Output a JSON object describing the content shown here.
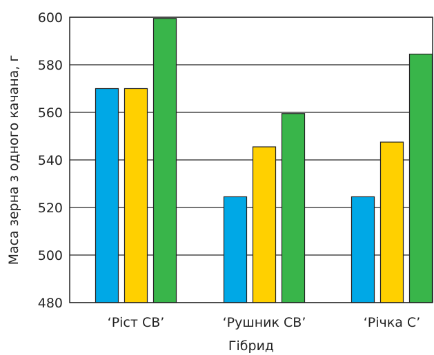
{
  "chart_data": {
    "type": "bar",
    "categories": [
      "‘Ріст СВ’",
      "‘Рушник СВ’",
      "‘Річка С’"
    ],
    "series": [
      {
        "color": "#00a8e6",
        "values": [
          570,
          524.5,
          524.5
        ]
      },
      {
        "color": "#ffd000",
        "values": [
          570,
          545.5,
          547.5
        ]
      },
      {
        "color": "#39b54a",
        "values": [
          599.5,
          559.5,
          584.5
        ]
      }
    ],
    "xlabel": "Гібрид",
    "ylabel": "Маса зерна з одного качана, г",
    "ylim": [
      480,
      600
    ],
    "yticks": [
      480,
      500,
      520,
      540,
      560,
      580,
      600
    ],
    "grid": "horizontal"
  }
}
